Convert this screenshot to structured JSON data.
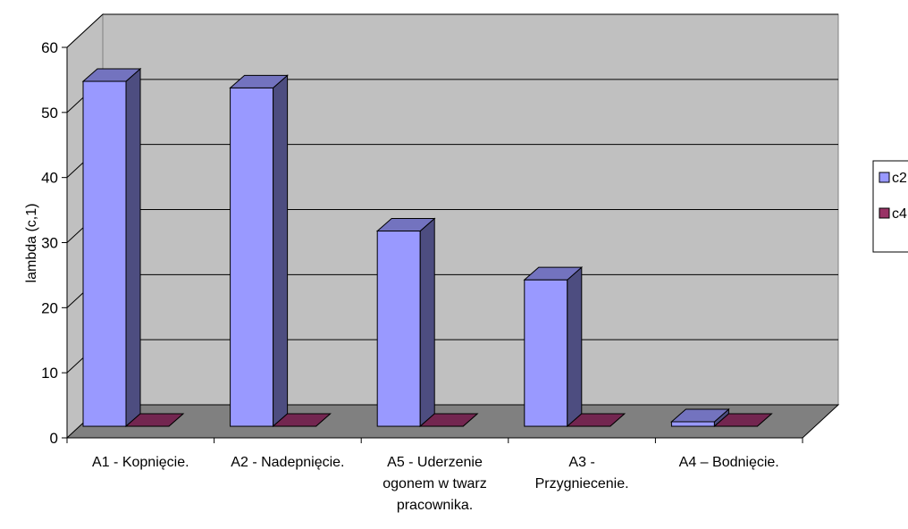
{
  "chart_data": {
    "type": "bar",
    "style": "3d-clustered-column",
    "categories": [
      "A1 - Kopnięcie.",
      "A2 - Nadepnięcie.",
      "A5 - Uderzenie ogonem w twarz pracownika.",
      "A3 - Przygniecenie.",
      "A4 – Bodnięcie."
    ],
    "category_lines": [
      [
        "A1 - Kopnięcie."
      ],
      [
        "A2 - Nadepnięcie."
      ],
      [
        "A5 - Uderzenie",
        "ogonem w twarz",
        "pracownika."
      ],
      [
        "A3 -",
        "Przygniecenie."
      ],
      [
        "A4 – Bodnięcie."
      ]
    ],
    "series": [
      {
        "name": "c2",
        "values": [
          53,
          52,
          30,
          22.5,
          0.7
        ],
        "color": "#9999ff",
        "side_color": "#4d4d80",
        "top_color": "#7373bf"
      },
      {
        "name": "c4",
        "values": [
          0,
          0,
          0,
          0,
          0
        ],
        "color": "#993366",
        "side_color": "#4d1a33",
        "top_color": "#732650"
      }
    ],
    "ylabel": "lambda (c,1)",
    "xlabel": "",
    "title": "",
    "ylim": [
      0,
      60
    ],
    "yticks": [
      "0",
      "10",
      "20",
      "30",
      "40",
      "50",
      "60"
    ],
    "grid": true,
    "legend": "right",
    "wall_color": "#c0c0c0",
    "floor_color": "#808080"
  }
}
